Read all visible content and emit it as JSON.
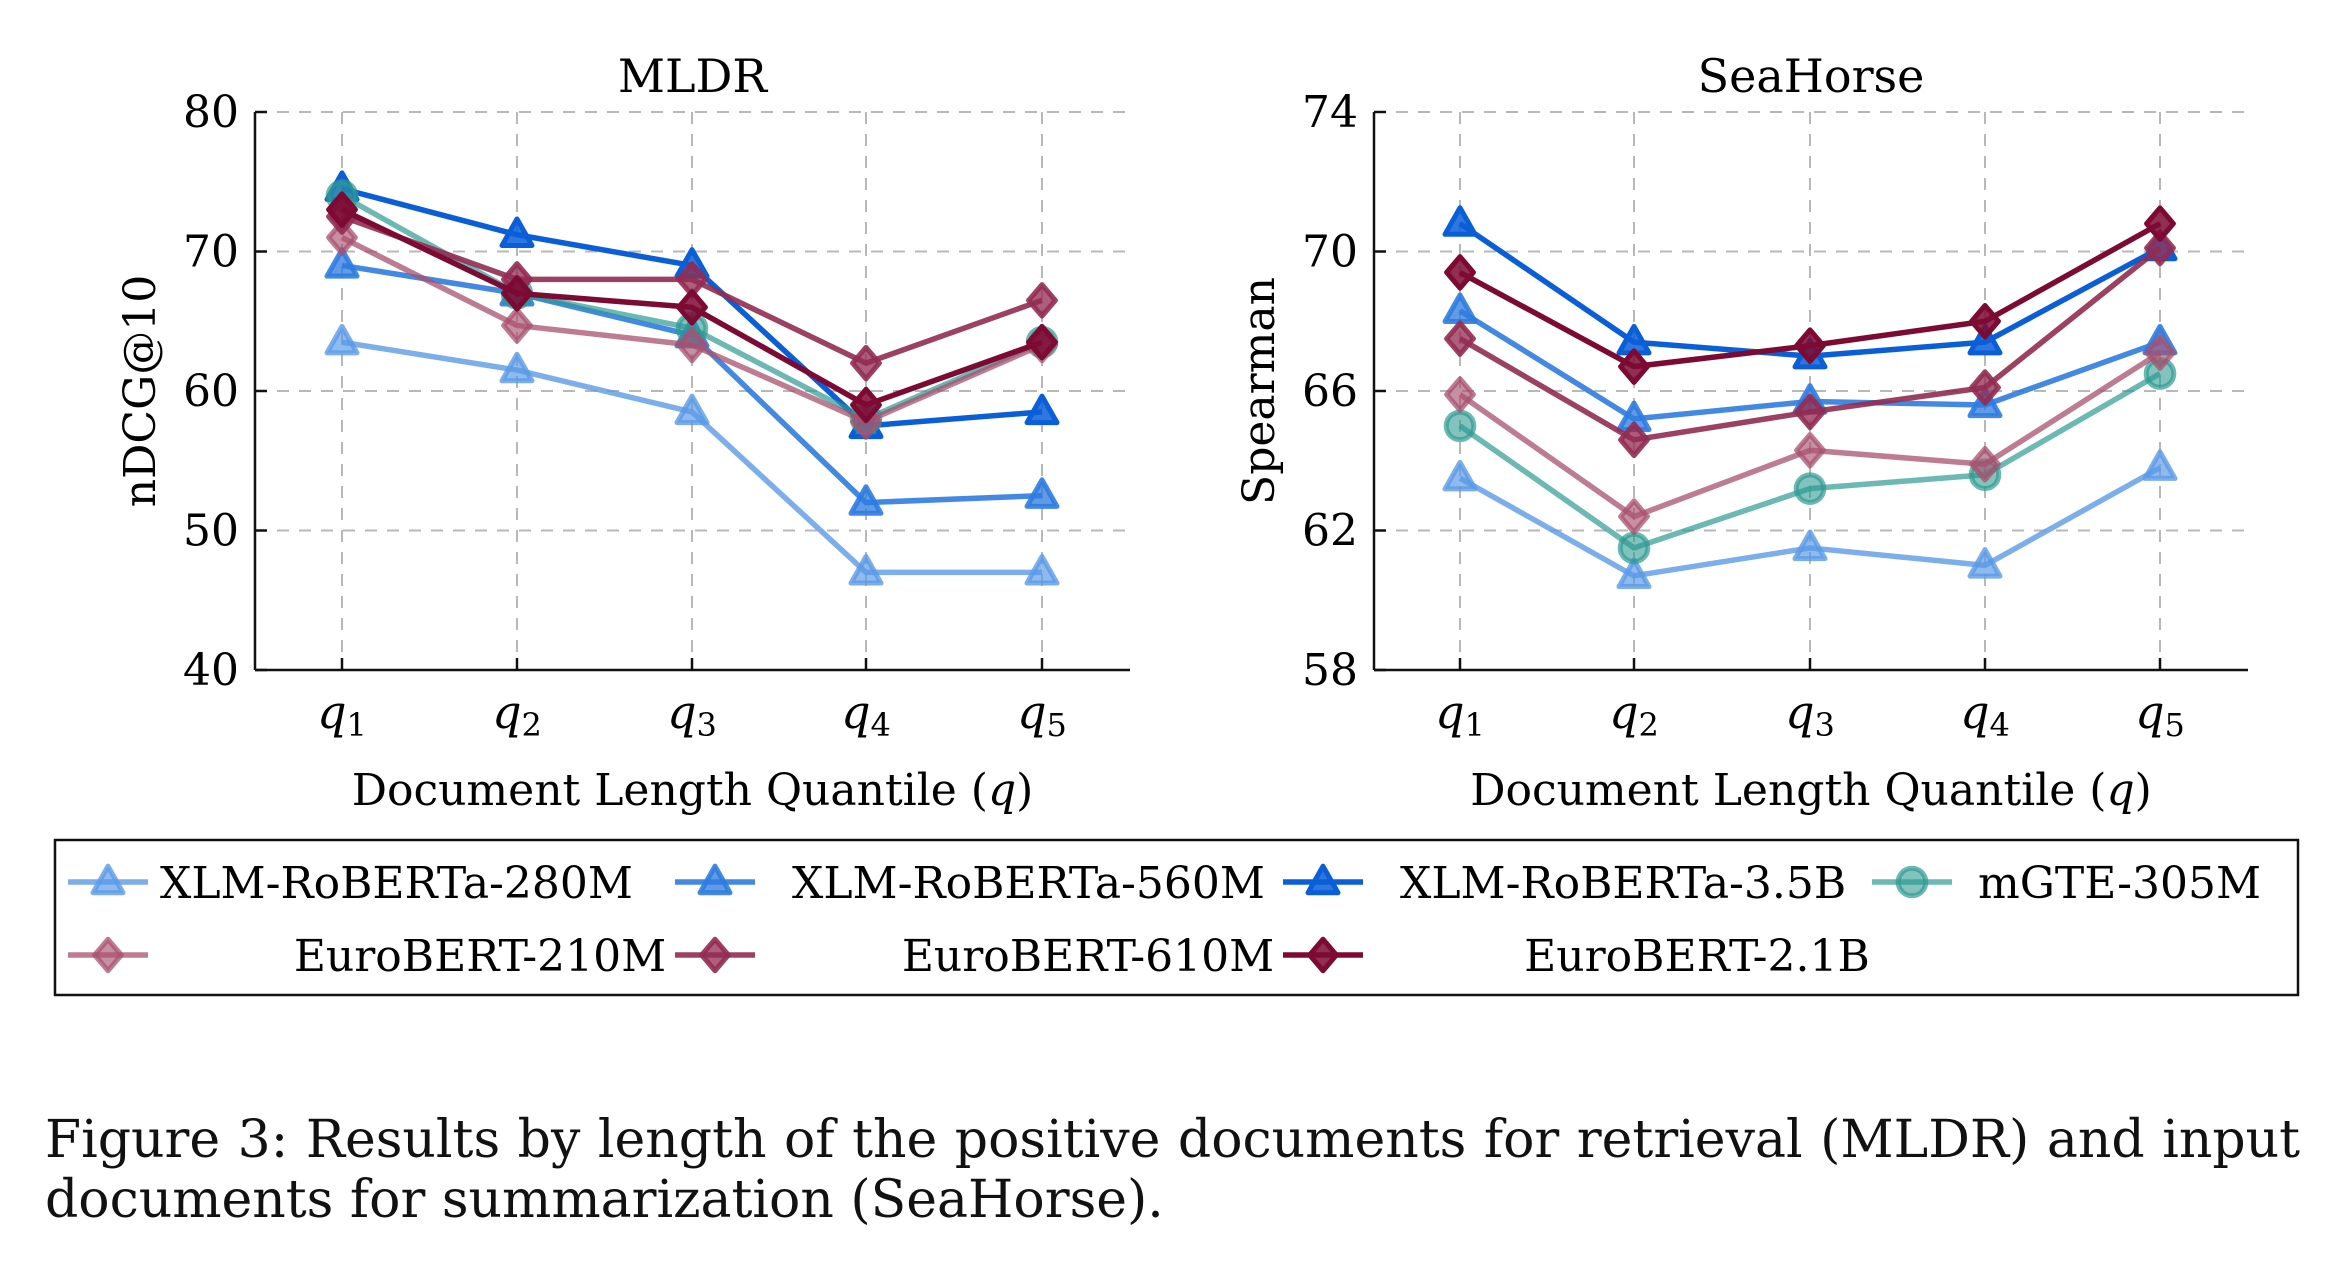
{
  "chart_data": [
    {
      "type": "line",
      "title": "MLDR",
      "xlabel": "Document Length Quantile (q)",
      "ylabel": "nDCG@10",
      "categories": [
        "q1",
        "q2",
        "q3",
        "q4",
        "q5"
      ],
      "ylim": [
        40,
        80
      ],
      "yticks": [
        40,
        50,
        60,
        70,
        80
      ],
      "grid": true,
      "series": [
        {
          "name": "XLM-RoBERTa-280M",
          "values": [
            63.5,
            61.5,
            58.5,
            47,
            47
          ]
        },
        {
          "name": "XLM-RoBERTa-560M",
          "values": [
            69,
            67,
            64,
            52,
            52.5
          ]
        },
        {
          "name": "XLM-RoBERTa-3.5B",
          "values": [
            74.5,
            71.2,
            69,
            57.5,
            58.5
          ]
        },
        {
          "name": "mGTE-305M",
          "values": [
            74,
            67,
            64.5,
            58,
            63.5
          ]
        },
        {
          "name": "EuroBERT-210M",
          "values": [
            71,
            64.7,
            63.3,
            57.8,
            63.3
          ]
        },
        {
          "name": "EuroBERT-610M",
          "values": [
            72.5,
            68,
            68,
            62,
            66.5
          ]
        },
        {
          "name": "EuroBERT-2.1B",
          "values": [
            73,
            67,
            66,
            59,
            63.5
          ]
        }
      ]
    },
    {
      "type": "line",
      "title": "SeaHorse",
      "xlabel": "Document Length Quantile (q)",
      "ylabel": "Spearman",
      "categories": [
        "q1",
        "q2",
        "q3",
        "q4",
        "q5"
      ],
      "ylim": [
        58,
        74
      ],
      "yticks": [
        58,
        62,
        66,
        70,
        74
      ],
      "grid": true,
      "series": [
        {
          "name": "XLM-RoBERTa-280M",
          "values": [
            63.5,
            60.7,
            61.5,
            61,
            63.8
          ]
        },
        {
          "name": "XLM-RoBERTa-560M",
          "values": [
            68.3,
            65.2,
            65.7,
            65.6,
            67.4
          ]
        },
        {
          "name": "XLM-RoBERTa-3.5B",
          "values": [
            70.8,
            67.4,
            67,
            67.4,
            70.1
          ]
        },
        {
          "name": "mGTE-305M",
          "values": [
            65,
            61.5,
            63.2,
            63.6,
            66.5
          ]
        },
        {
          "name": "EuroBERT-210M",
          "values": [
            65.9,
            62.4,
            64.3,
            63.9,
            67.1
          ]
        },
        {
          "name": "EuroBERT-610M",
          "values": [
            67.5,
            64.6,
            65.4,
            66.1,
            70.1
          ]
        },
        {
          "name": "EuroBERT-2.1B",
          "values": [
            69.4,
            66.7,
            67.3,
            68,
            70.8
          ]
        }
      ]
    }
  ],
  "legend": [
    {
      "name": "XLM-RoBERTa-280M",
      "color": "#5a9ae6",
      "marker": "triangle",
      "opacity": 0.8
    },
    {
      "name": "XLM-RoBERTa-560M",
      "color": "#2f7ce0",
      "marker": "triangle",
      "opacity": 0.9
    },
    {
      "name": "XLM-RoBERTa-3.5B",
      "color": "#0a5fd8",
      "marker": "triangle",
      "opacity": 1
    },
    {
      "name": "mGTE-305M",
      "color": "#2e9a92",
      "marker": "circle",
      "opacity": 0.7
    },
    {
      "name": "EuroBERT-210M",
      "color": "#a8506e",
      "marker": "diamond",
      "opacity": 0.75
    },
    {
      "name": "EuroBERT-610M",
      "color": "#922c52",
      "marker": "diamond",
      "opacity": 0.9
    },
    {
      "name": "EuroBERT-2.1B",
      "color": "#7d0a32",
      "marker": "diamond",
      "opacity": 1
    }
  ],
  "caption": "Figure 3: Results by length of the positive documents for retrieval (MLDR) and input documents for summarization (SeaHorse)."
}
